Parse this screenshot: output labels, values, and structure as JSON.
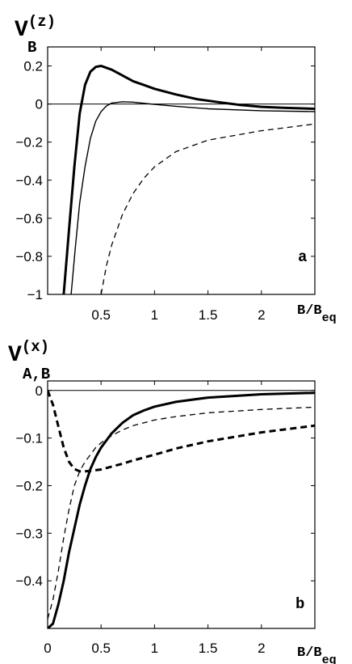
{
  "chart_data": [
    {
      "type": "line",
      "panel_label": "a",
      "ylabel_main": "V",
      "ylabel_sup": "(z)",
      "ylabel_sub": "B",
      "xlabel_main": "B/B",
      "xlabel_sub": "eq",
      "xlim": [
        0,
        2.5
      ],
      "ylim": [
        -1,
        0.3
      ],
      "xticks": [
        0.5,
        1,
        1.5,
        2
      ],
      "xtick_labels": [
        "0.5",
        "1",
        "1.5",
        "2"
      ],
      "yticks": [
        0.2,
        0,
        -0.2,
        -0.4,
        -0.6,
        -0.8,
        -1
      ],
      "ytick_labels": [
        "0.2",
        "0",
        "−0.2",
        "−0.4",
        "−0.6",
        "−0.8",
        "−1"
      ],
      "zero_line": true,
      "series": [
        {
          "style": "thick-solid",
          "x": [
            0.15,
            0.2,
            0.25,
            0.3,
            0.35,
            0.4,
            0.45,
            0.5,
            0.6,
            0.7,
            0.8,
            0.9,
            1.0,
            1.2,
            1.4,
            1.6,
            1.8,
            2.0,
            2.2,
            2.5
          ],
          "y": [
            -1.0,
            -0.66,
            -0.33,
            -0.05,
            0.1,
            0.17,
            0.195,
            0.2,
            0.18,
            0.15,
            0.12,
            0.1,
            0.08,
            0.05,
            0.025,
            0.01,
            -0.005,
            -0.015,
            -0.02,
            -0.025
          ]
        },
        {
          "style": "thin-solid",
          "x": [
            0.22,
            0.26,
            0.3,
            0.35,
            0.4,
            0.45,
            0.5,
            0.55,
            0.6,
            0.7,
            0.8,
            0.9,
            1.0,
            1.2,
            1.5,
            2.0,
            2.5
          ],
          "y": [
            -1.0,
            -0.75,
            -0.52,
            -0.33,
            -0.18,
            -0.09,
            -0.04,
            -0.01,
            0.005,
            0.012,
            0.01,
            0.004,
            -0.002,
            -0.012,
            -0.025,
            -0.035,
            -0.04
          ]
        },
        {
          "style": "thin-dashed",
          "x": [
            0.5,
            0.55,
            0.6,
            0.7,
            0.8,
            0.9,
            1.0,
            1.2,
            1.5,
            2.0,
            2.5
          ],
          "y": [
            -1.0,
            -0.85,
            -0.74,
            -0.58,
            -0.47,
            -0.39,
            -0.33,
            -0.25,
            -0.19,
            -0.14,
            -0.105
          ]
        }
      ]
    },
    {
      "type": "line",
      "panel_label": "b",
      "ylabel_main": "V",
      "ylabel_sup": "(x)",
      "ylabel_sub": "A,B",
      "xlabel_main": "B/B",
      "xlabel_sub": "eq",
      "xlim": [
        0,
        2.5
      ],
      "ylim": [
        -0.5,
        0.02
      ],
      "xticks": [
        0,
        0.5,
        1,
        1.5,
        2
      ],
      "xtick_labels": [
        "0",
        "0.5",
        "1",
        "1.5",
        "2"
      ],
      "yticks": [
        0,
        -0.1,
        -0.2,
        -0.3,
        -0.4
      ],
      "ytick_labels": [
        "0",
        "−0.1",
        "−0.2",
        "−0.3",
        "−0.4"
      ],
      "zero_line": true,
      "series": [
        {
          "style": "thick-solid",
          "x": [
            0,
            0.05,
            0.1,
            0.15,
            0.2,
            0.25,
            0.3,
            0.35,
            0.4,
            0.45,
            0.5,
            0.6,
            0.7,
            0.8,
            0.9,
            1.0,
            1.2,
            1.5,
            2.0,
            2.5
          ],
          "y": [
            -0.5,
            -0.49,
            -0.45,
            -0.4,
            -0.34,
            -0.29,
            -0.24,
            -0.2,
            -0.165,
            -0.14,
            -0.12,
            -0.09,
            -0.068,
            -0.052,
            -0.042,
            -0.034,
            -0.024,
            -0.015,
            -0.008,
            -0.005
          ]
        },
        {
          "style": "thin-dashed",
          "x": [
            0,
            0.05,
            0.1,
            0.15,
            0.2,
            0.25,
            0.3,
            0.35,
            0.4,
            0.45,
            0.5,
            0.6,
            0.7,
            0.8,
            1.0,
            1.2,
            1.5,
            2.0,
            2.5
          ],
          "y": [
            -0.48,
            -0.44,
            -0.38,
            -0.31,
            -0.25,
            -0.2,
            -0.17,
            -0.15,
            -0.135,
            -0.12,
            -0.11,
            -0.095,
            -0.083,
            -0.074,
            -0.062,
            -0.055,
            -0.047,
            -0.04,
            -0.035
          ]
        },
        {
          "style": "thick-dashed",
          "x": [
            0,
            0.05,
            0.1,
            0.15,
            0.2,
            0.25,
            0.3,
            0.35,
            0.4,
            0.5,
            0.6,
            0.7,
            0.8,
            1.0,
            1.2,
            1.5,
            2.0,
            2.5
          ],
          "y": [
            0,
            -0.03,
            -0.075,
            -0.12,
            -0.15,
            -0.165,
            -0.17,
            -0.17,
            -0.169,
            -0.166,
            -0.16,
            -0.154,
            -0.147,
            -0.135,
            -0.122,
            -0.107,
            -0.088,
            -0.074
          ]
        }
      ]
    }
  ]
}
